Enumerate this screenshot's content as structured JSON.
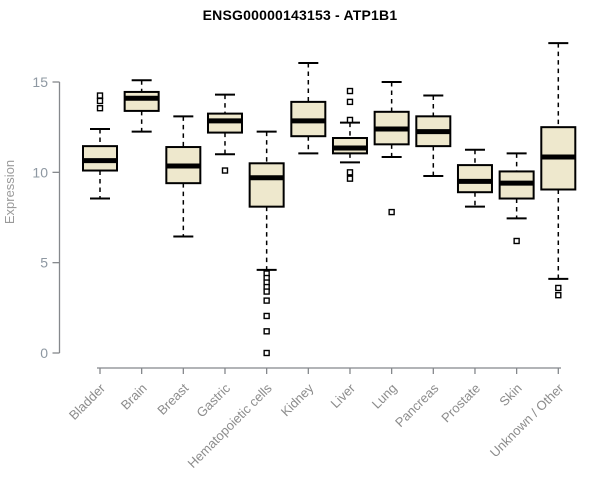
{
  "chart_data": {
    "type": "boxplot",
    "title": "ENSG00000143153 - ATP1B1",
    "ylabel": "Expression",
    "xlabel": "",
    "y_ticks": [
      0,
      5,
      10,
      15
    ],
    "ylim": [
      0,
      17.5
    ],
    "grid": "off",
    "legend": "none",
    "categories": [
      "Bladder",
      "Brain",
      "Breast",
      "Gastric",
      "Hematopoietic cells",
      "Kidney",
      "Liver",
      "Lung",
      "Pancreas",
      "Prostate",
      "Skin",
      "Unknown / Other"
    ],
    "boxes": [
      {
        "category": "Bladder",
        "whisker_low": 8.55,
        "q1": 10.1,
        "median": 10.65,
        "q3": 11.45,
        "whisker_high": 12.4,
        "outliers": [
          13.55,
          13.95,
          14.25
        ]
      },
      {
        "category": "Brain",
        "whisker_low": 12.25,
        "q1": 13.4,
        "median": 14.1,
        "q3": 14.45,
        "whisker_high": 15.1,
        "outliers": []
      },
      {
        "category": "Breast",
        "whisker_low": 6.45,
        "q1": 9.4,
        "median": 10.35,
        "q3": 11.4,
        "whisker_high": 13.1,
        "outliers": []
      },
      {
        "category": "Gastric",
        "whisker_low": 11.0,
        "q1": 12.2,
        "median": 12.85,
        "q3": 13.25,
        "whisker_high": 14.3,
        "outliers": [
          10.1
        ]
      },
      {
        "category": "Hematopoietic cells",
        "whisker_low": 4.6,
        "q1": 8.1,
        "median": 9.7,
        "q3": 10.5,
        "whisker_high": 12.25,
        "outliers": [
          4.4,
          4.15,
          3.9,
          3.65,
          3.4,
          2.9,
          2.05,
          1.2,
          0.0
        ]
      },
      {
        "category": "Kidney",
        "whisker_low": 11.05,
        "q1": 12.0,
        "median": 12.85,
        "q3": 13.9,
        "whisker_high": 16.05,
        "outliers": []
      },
      {
        "category": "Liver",
        "whisker_low": 10.55,
        "q1": 11.05,
        "median": 11.35,
        "q3": 11.9,
        "whisker_high": 12.75,
        "outliers": [
          14.5,
          13.9,
          12.9,
          10.0,
          9.65
        ]
      },
      {
        "category": "Lung",
        "whisker_low": 10.85,
        "q1": 11.55,
        "median": 12.4,
        "q3": 13.35,
        "whisker_high": 15.0,
        "outliers": [
          7.8
        ]
      },
      {
        "category": "Pancreas",
        "whisker_low": 9.8,
        "q1": 11.45,
        "median": 12.25,
        "q3": 13.1,
        "whisker_high": 14.25,
        "outliers": []
      },
      {
        "category": "Prostate",
        "whisker_low": 8.1,
        "q1": 8.9,
        "median": 9.5,
        "q3": 10.4,
        "whisker_high": 11.25,
        "outliers": []
      },
      {
        "category": "Skin",
        "whisker_low": 7.45,
        "q1": 8.55,
        "median": 9.4,
        "q3": 10.05,
        "whisker_high": 11.05,
        "outliers": [
          6.2
        ]
      },
      {
        "category": "Unknown / Other",
        "whisker_low": 4.1,
        "q1": 9.05,
        "median": 10.85,
        "q3": 12.5,
        "whisker_high": 17.15,
        "outliers": [
          3.6,
          3.2
        ]
      }
    ],
    "colors": {
      "box_fill": "#EEE8CD",
      "box_stroke": "#000000",
      "median": "#000000",
      "whisker": "#000000",
      "outlier_stroke": "#000000",
      "outlier_fill": "#ffffff",
      "axis_line": "#85888c",
      "tick_label": "#8e98a2",
      "category_label": "#8c8c8c",
      "axis_label": "#9a9a9a",
      "title": "#000000",
      "background": "#ffffff"
    }
  }
}
